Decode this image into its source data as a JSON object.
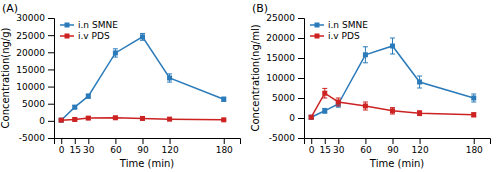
{
  "chart_data": [
    {
      "type": "line",
      "title": "(A)",
      "x": [
        0,
        15,
        30,
        60,
        90,
        120,
        180
      ],
      "xlabel": "Time (min)",
      "ylabel": "Concentration(ng/g)",
      "xlim": [
        -8,
        198
      ],
      "xticks": [
        0,
        15,
        30,
        60,
        90,
        120,
        180
      ],
      "ylim": [
        -5000,
        30000
      ],
      "yticks": [
        -5000,
        0,
        5000,
        10000,
        15000,
        20000,
        25000,
        30000
      ],
      "legend": "upper left",
      "series": [
        {
          "name": "i.n SMNE",
          "color": "#2B7BBA",
          "marker": "square",
          "values": [
            200,
            4000,
            7200,
            19800,
            24500,
            12500,
            6300
          ],
          "errors": [
            300,
            500,
            600,
            1200,
            1000,
            1200,
            600
          ]
        },
        {
          "name": "i.v PDS",
          "color": "#CC2222",
          "marker": "square",
          "values": [
            200,
            400,
            800,
            900,
            700,
            500,
            300
          ],
          "errors": [
            300,
            400,
            400,
            400,
            300,
            300,
            200
          ]
        }
      ]
    },
    {
      "type": "line",
      "title": "(B)",
      "x": [
        0,
        15,
        30,
        60,
        90,
        120,
        180
      ],
      "xlabel": "Time (min)",
      "ylabel": "Concentration(ng/ml)",
      "xlim": [
        -8,
        198
      ],
      "xticks": [
        0,
        15,
        30,
        60,
        90,
        120,
        180
      ],
      "ylim": [
        -5000,
        25000
      ],
      "yticks": [
        -5000,
        0,
        5000,
        10000,
        15000,
        20000,
        25000
      ],
      "legend": "upper left",
      "series": [
        {
          "name": "i.n SMNE",
          "color": "#2B7BBA",
          "marker": "square",
          "values": [
            200,
            1800,
            3500,
            15800,
            18000,
            9000,
            5000
          ],
          "errors": [
            400,
            600,
            800,
            2000,
            2000,
            1500,
            1000
          ]
        },
        {
          "name": "i.v PDS",
          "color": "#CC2222",
          "marker": "square",
          "values": [
            200,
            6200,
            4000,
            3000,
            1800,
            1200,
            800
          ],
          "errors": [
            400,
            1200,
            1000,
            1000,
            800,
            600,
            500
          ]
        }
      ]
    }
  ]
}
